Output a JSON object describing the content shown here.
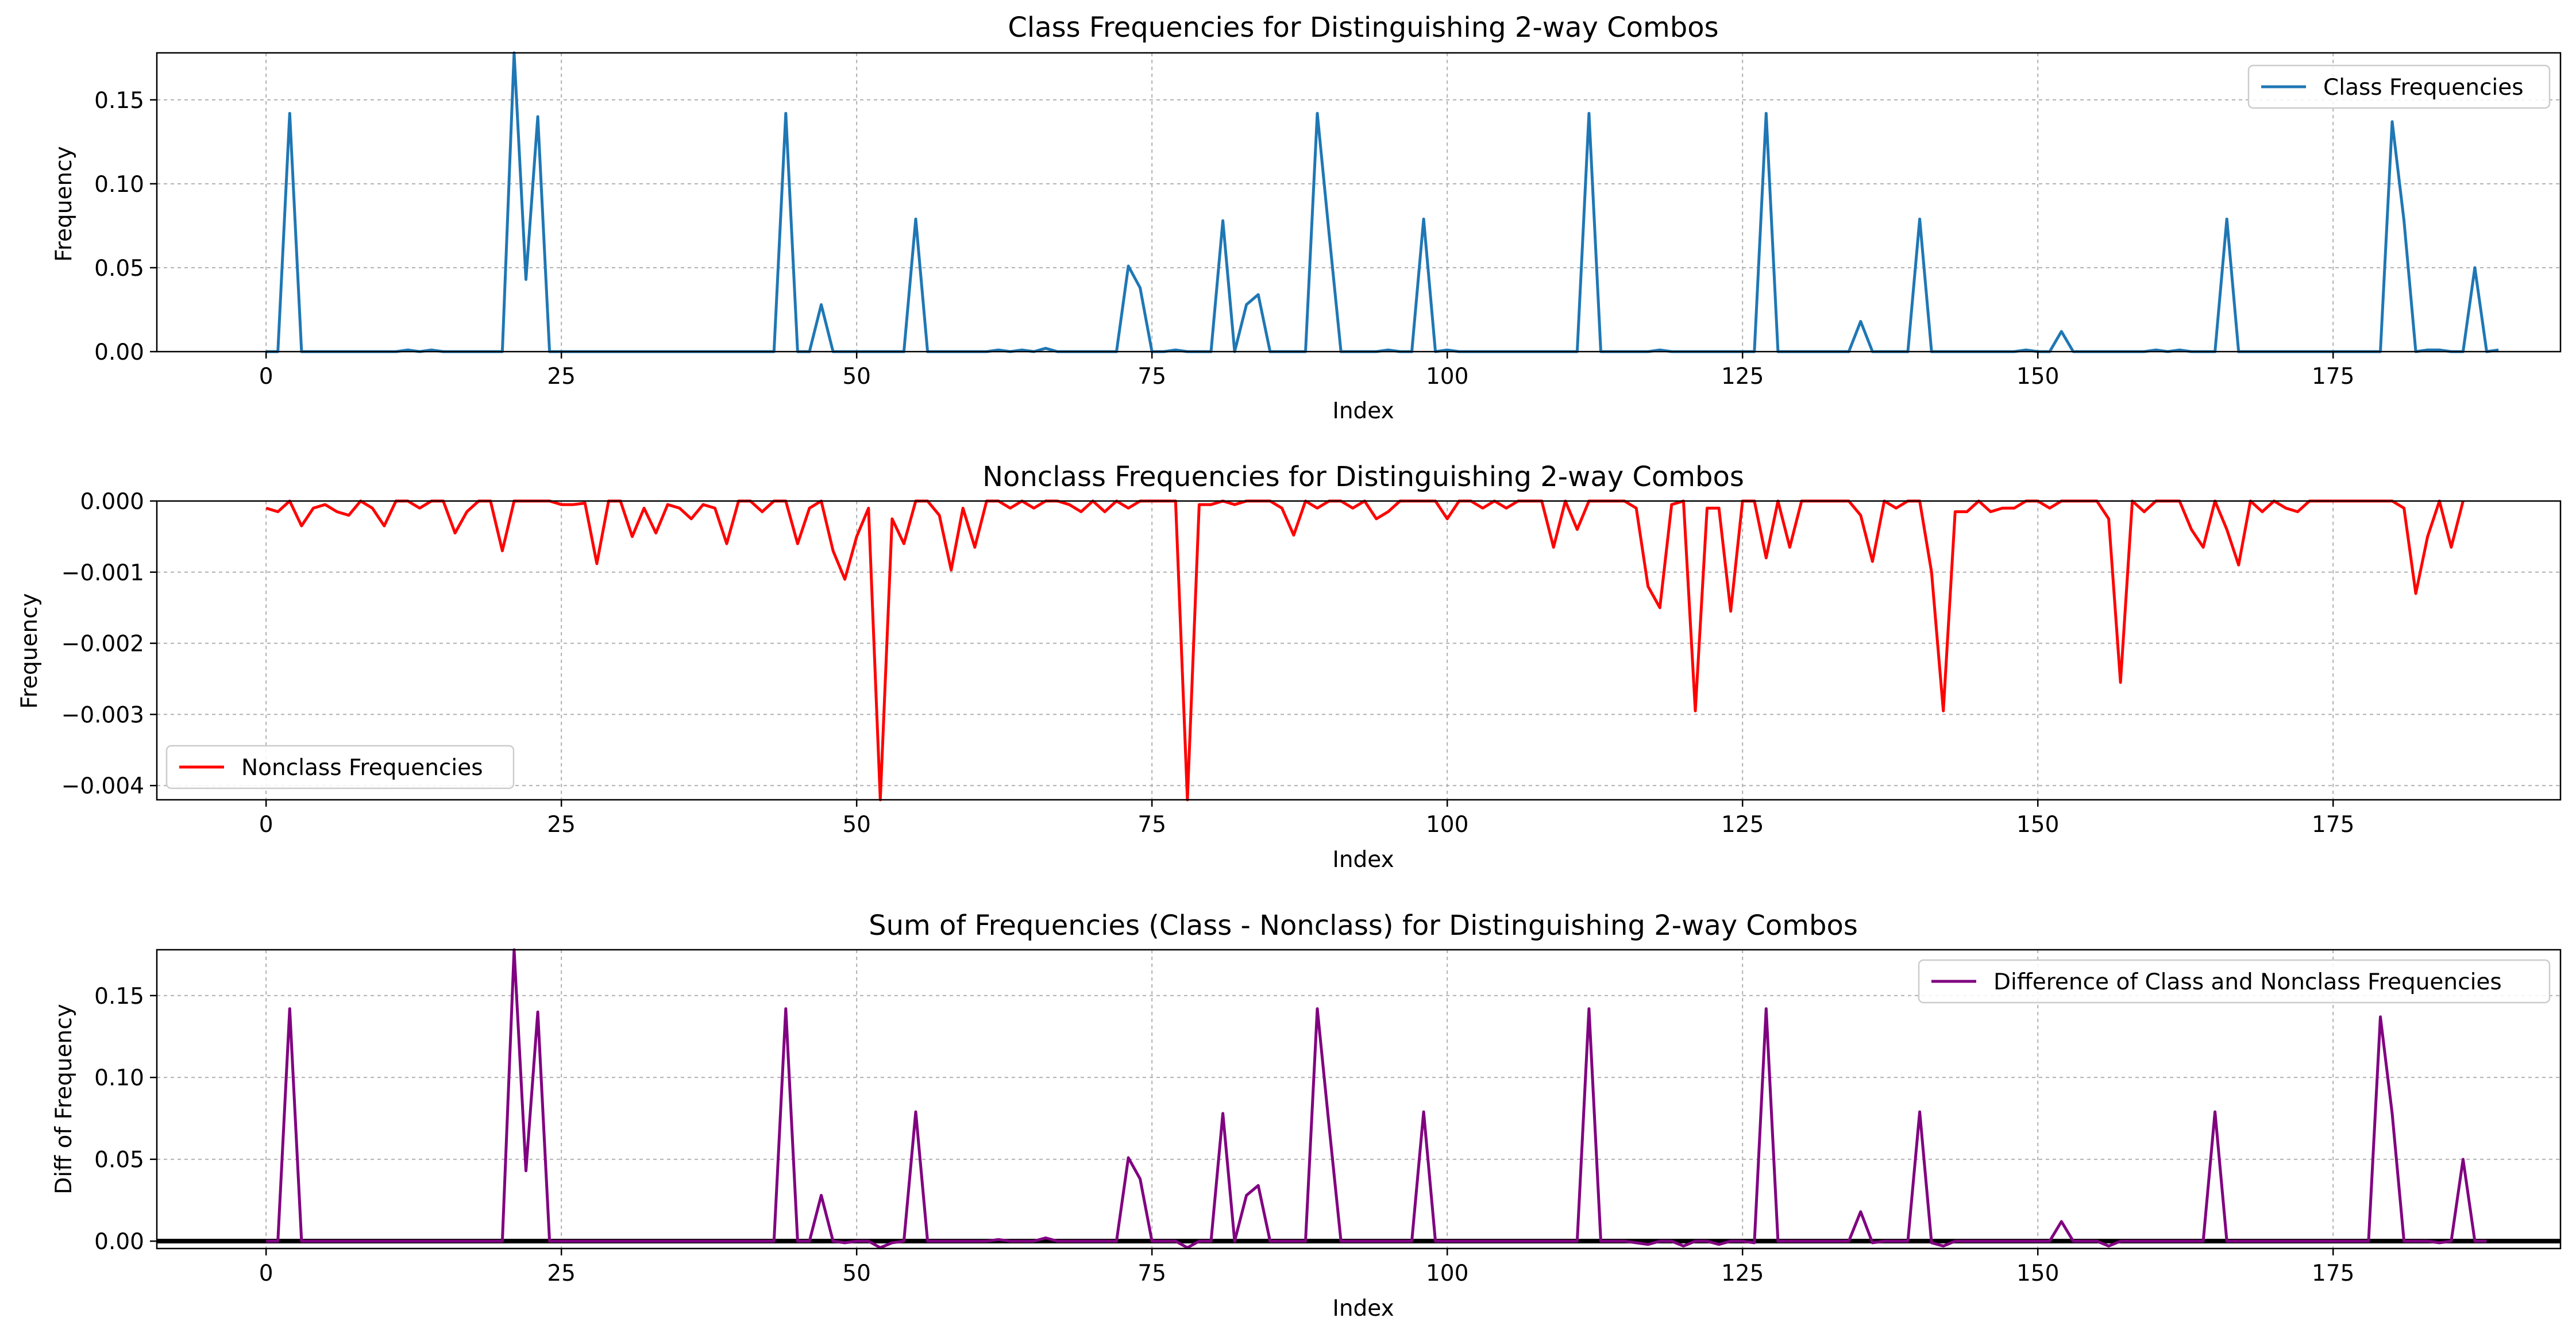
{
  "chart_data": [
    {
      "type": "line",
      "title": "Class Frequencies for Distinguishing 2-way Combos",
      "xlabel": "Index",
      "ylabel": "Frequency",
      "xlim": [
        -9.25,
        194.25
      ],
      "ylim": [
        0,
        0.178
      ],
      "xticks": [
        0,
        25,
        50,
        75,
        100,
        125,
        150,
        175
      ],
      "yticks": [
        0.0,
        0.05,
        0.1,
        0.15
      ],
      "ytick_labels": [
        "0.00",
        "0.05",
        "0.10",
        "0.15"
      ],
      "grid": true,
      "legend": "top-right",
      "series": [
        {
          "name": "Class Frequencies",
          "color": "#1f77b4",
          "x_start": 0,
          "values": [
            0,
            0,
            0.142,
            0,
            0,
            0,
            0,
            0,
            0,
            0,
            0,
            0,
            0.001,
            0,
            0.001,
            0,
            0,
            0,
            0,
            0,
            0,
            0.178,
            0.043,
            0.14,
            0,
            0,
            0,
            0,
            0,
            0,
            0,
            0,
            0,
            0,
            0,
            0,
            0,
            0,
            0,
            0,
            0,
            0,
            0,
            0,
            0.142,
            0,
            0,
            0.028,
            0,
            0,
            0,
            0,
            0,
            0,
            0,
            0.079,
            0,
            0,
            0,
            0,
            0,
            0,
            0.001,
            0,
            0.001,
            0,
            0.002,
            0,
            0,
            0,
            0,
            0,
            0,
            0.051,
            0.038,
            0,
            0,
            0.001,
            0,
            0,
            0,
            0.078,
            0,
            0.028,
            0.034,
            0,
            0,
            0,
            0,
            0.142,
            0.07,
            0,
            0,
            0,
            0,
            0.001,
            0,
            0,
            0.079,
            0,
            0.001,
            0,
            0,
            0,
            0,
            0,
            0,
            0,
            0,
            0,
            0,
            0,
            0.142,
            0,
            0,
            0,
            0,
            0,
            0.001,
            0,
            0,
            0,
            0,
            0,
            0,
            0,
            0,
            0.142,
            0,
            0,
            0,
            0,
            0,
            0,
            0,
            0.018,
            0,
            0,
            0,
            0,
            0.079,
            0,
            0,
            0,
            0,
            0,
            0,
            0,
            0,
            0.001,
            0,
            0,
            0.012,
            0,
            0,
            0,
            0,
            0,
            0,
            0,
            0.001,
            0,
            0.001,
            0,
            0,
            0,
            0.079,
            0,
            0,
            0,
            0,
            0,
            0,
            0,
            0,
            0,
            0,
            0,
            0,
            0,
            0.137,
            0.078,
            0,
            0.001,
            0.001,
            0,
            0,
            0.05,
            0,
            0.001
          ]
        }
      ]
    },
    {
      "type": "line",
      "title": "Nonclass Frequencies for Distinguishing 2-way Combos",
      "xlabel": "Index",
      "ylabel": "Frequency",
      "xlim": [
        -9.25,
        194.25
      ],
      "ylim": [
        -0.0042,
        0.0
      ],
      "xticks": [
        0,
        25,
        50,
        75,
        100,
        125,
        150,
        175
      ],
      "yticks": [
        -0.004,
        -0.003,
        -0.002,
        -0.001,
        0.0
      ],
      "ytick_labels": [
        "−0.004",
        "−0.003",
        "−0.002",
        "−0.001",
        "0.000"
      ],
      "grid": true,
      "legend": "bottom-left",
      "series": [
        {
          "name": "Nonclass Frequencies",
          "color": "#ff0000",
          "x_start": 0,
          "values": [
            -0.0001,
            -0.00015,
            0,
            -0.00035,
            -0.0001,
            -5e-05,
            -0.00015,
            -0.0002,
            0,
            -0.0001,
            -0.00035,
            0,
            0,
            -0.0001,
            0,
            0,
            -0.00045,
            -0.00015,
            0,
            0,
            -0.0007,
            0,
            0,
            0,
            0,
            -5e-05,
            -5e-05,
            -3e-05,
            -0.00088,
            0,
            0,
            -0.0005,
            -0.0001,
            -0.00045,
            -5e-05,
            -0.0001,
            -0.00025,
            -5e-05,
            -0.0001,
            -0.0006,
            0,
            0,
            -0.00015,
            0,
            0,
            -0.0006,
            -0.0001,
            0,
            -0.0007,
            -0.0011,
            -0.0005,
            -0.0001,
            -0.0042,
            -0.00025,
            -0.0006,
            0,
            0,
            -0.0002,
            -0.00097,
            -0.0001,
            -0.00065,
            0,
            0,
            -0.0001,
            0,
            -0.0001,
            0,
            0,
            -5e-05,
            -0.00015,
            0,
            -0.00015,
            0,
            -0.0001,
            0,
            0,
            0,
            0,
            -0.0042,
            -5e-05,
            -5e-05,
            0,
            -5e-05,
            0,
            0,
            0,
            -0.0001,
            -0.00048,
            0,
            -0.0001,
            0,
            0,
            -0.0001,
            0,
            -0.00025,
            -0.00015,
            0,
            0,
            0,
            0,
            -0.00025,
            0,
            0,
            -0.0001,
            0,
            -0.0001,
            0,
            0,
            0,
            -0.00065,
            0,
            -0.0004,
            0,
            0,
            0,
            0,
            -0.0001,
            -0.0012,
            -0.0015,
            -5e-05,
            0,
            -0.00295,
            -0.0001,
            -0.0001,
            -0.00155,
            0,
            0,
            -0.0008,
            0,
            -0.00065,
            0,
            0,
            0,
            0,
            0,
            -0.0002,
            -0.00085,
            0,
            -0.0001,
            0,
            0,
            -0.001,
            -0.00295,
            -0.00015,
            -0.00015,
            0,
            -0.00015,
            -0.0001,
            -0.0001,
            0,
            0,
            -0.0001,
            0,
            0,
            0,
            0,
            -0.00025,
            -0.00255,
            0,
            -0.00015,
            0,
            0,
            0,
            -0.0004,
            -0.00065,
            0,
            -0.0004,
            -0.0009,
            0,
            -0.00015,
            0,
            -0.0001,
            -0.00015,
            0,
            0,
            0,
            0,
            0,
            0,
            0,
            0,
            -0.0001,
            -0.0013,
            -0.0005,
            0,
            -0.00065,
            0
          ]
        }
      ]
    },
    {
      "type": "line",
      "title": "Sum of Frequencies (Class - Nonclass) for Distinguishing 2-way Combos",
      "xlabel": "Index",
      "ylabel": "Diff of Frequency",
      "xlim": [
        -9.25,
        194.25
      ],
      "ylim": [
        -0.0045,
        0.178
      ],
      "xticks": [
        0,
        25,
        50,
        75,
        100,
        125,
        150,
        175
      ],
      "yticks": [
        0.0,
        0.05,
        0.1,
        0.15
      ],
      "ytick_labels": [
        "0.00",
        "0.05",
        "0.10",
        "0.15"
      ],
      "grid": true,
      "legend": "top-right",
      "hline": 0,
      "series": [
        {
          "name": "Difference of Class and Nonclass Frequencies",
          "color": "#800080",
          "x_start": 0,
          "values": [
            0,
            0,
            0.142,
            0,
            0,
            0,
            0,
            0,
            0,
            0,
            0,
            0,
            0,
            0,
            0,
            0,
            0,
            0,
            0,
            0,
            0,
            0.178,
            0.043,
            0.14,
            0,
            0,
            0,
            0,
            0,
            0,
            0,
            0,
            0,
            0,
            0,
            0,
            0,
            0,
            0,
            0,
            0,
            0,
            0,
            0,
            0.142,
            0,
            0,
            0.028,
            0,
            -0.001,
            0,
            0,
            -0.004,
            -0.001,
            0,
            0.079,
            0,
            0,
            0,
            0,
            0,
            0,
            0.001,
            0,
            0,
            0,
            0.002,
            0,
            0,
            0,
            0,
            0,
            0,
            0.051,
            0.038,
            0,
            0,
            0,
            -0.004,
            0,
            0,
            0.078,
            0,
            0.028,
            0.034,
            0,
            0,
            0,
            0,
            0.142,
            0.07,
            0,
            0,
            0,
            0,
            0,
            0,
            0,
            0.079,
            0,
            0,
            0,
            0,
            0,
            0,
            0,
            0,
            0,
            0,
            0,
            0,
            0,
            0.142,
            0,
            0,
            0,
            -0.001,
            -0.002,
            0,
            0,
            -0.003,
            0,
            0,
            -0.002,
            0,
            0,
            -0.001,
            0.142,
            0,
            0,
            0,
            0,
            0,
            0,
            0,
            0.018,
            -0.001,
            0,
            0,
            0,
            0.079,
            -0.001,
            -0.003,
            0,
            0,
            0,
            0,
            0,
            0,
            0,
            0,
            0,
            0.012,
            0,
            0,
            0,
            -0.003,
            0,
            0,
            0,
            0,
            0,
            0,
            0,
            0,
            0.079,
            0,
            0,
            0,
            0,
            0,
            0,
            0,
            0,
            0,
            0,
            0,
            0,
            0,
            0.137,
            0.078,
            0,
            0,
            0,
            -0.001,
            0,
            0.05,
            0,
            0
          ]
        }
      ]
    }
  ]
}
